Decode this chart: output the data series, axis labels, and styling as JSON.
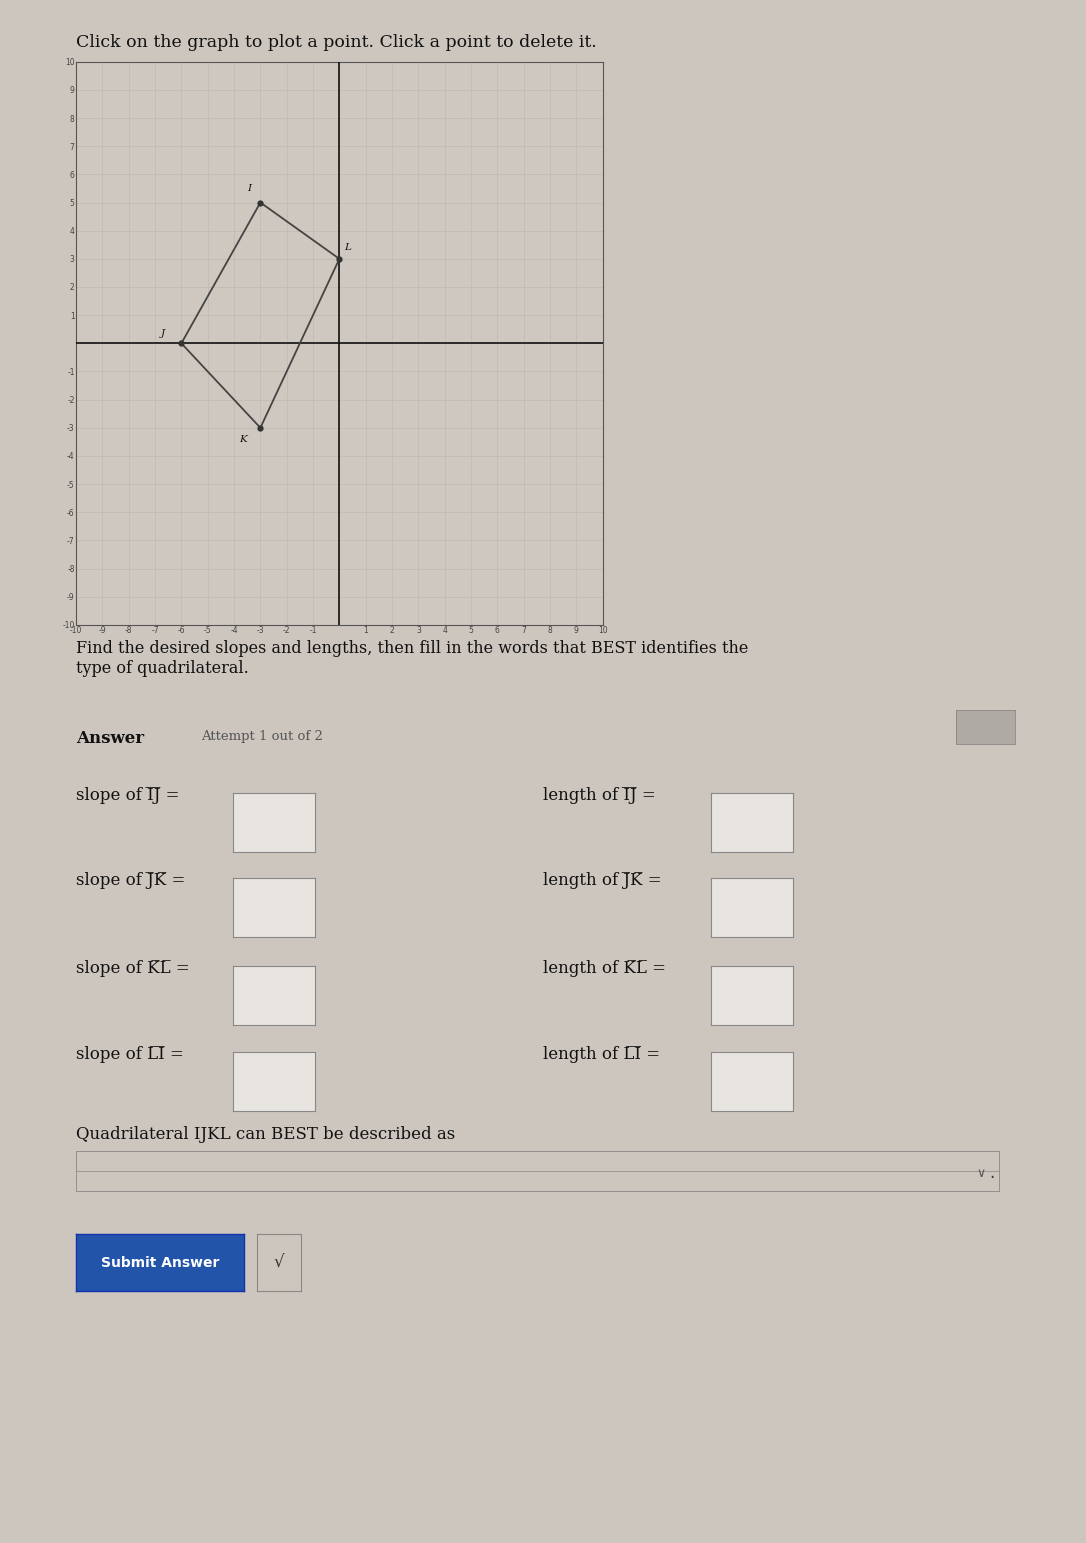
{
  "title": "Click on the graph to plot a point. Click a point to delete it.",
  "instruction": "Find the desired slopes and lengths, then fill in the words that BEST identifies the\ntype of quadrilateral.",
  "answer_label": "Answer",
  "attempt_label": "Attempt 1 out of 2",
  "points": {
    "I": [
      -3,
      5
    ],
    "J": [
      -6,
      0
    ],
    "K": [
      -3,
      -3
    ],
    "L": [
      0,
      3
    ]
  },
  "point_order": [
    "I",
    "J",
    "K",
    "L"
  ],
  "graph_xlim": [
    -10,
    10
  ],
  "graph_ylim": [
    -10,
    10
  ],
  "graph_bg": "#cfc8c0",
  "graph_grid_minor_color": "#bdb6ae",
  "graph_grid_major_color": "#aaa49c",
  "quad_line_color": "#444444",
  "point_label_color": "#111111",
  "axis_color": "#111111",
  "tick_label_color": "#444444",
  "page_bg": "#ccc6be",
  "submit_btn_color": "#2255aa",
  "submit_btn_text": "Submit Answer",
  "quad_text": "Quadrilateral IJKL can BEST be described as",
  "box_fill": "#e8e4e0",
  "box_border": "#888888",
  "seg_pairs": [
    [
      "I",
      "J"
    ],
    [
      "J",
      "K"
    ],
    [
      "K",
      "L"
    ],
    [
      "L",
      "I"
    ]
  ],
  "icon_box_color": "#b0aaa4"
}
